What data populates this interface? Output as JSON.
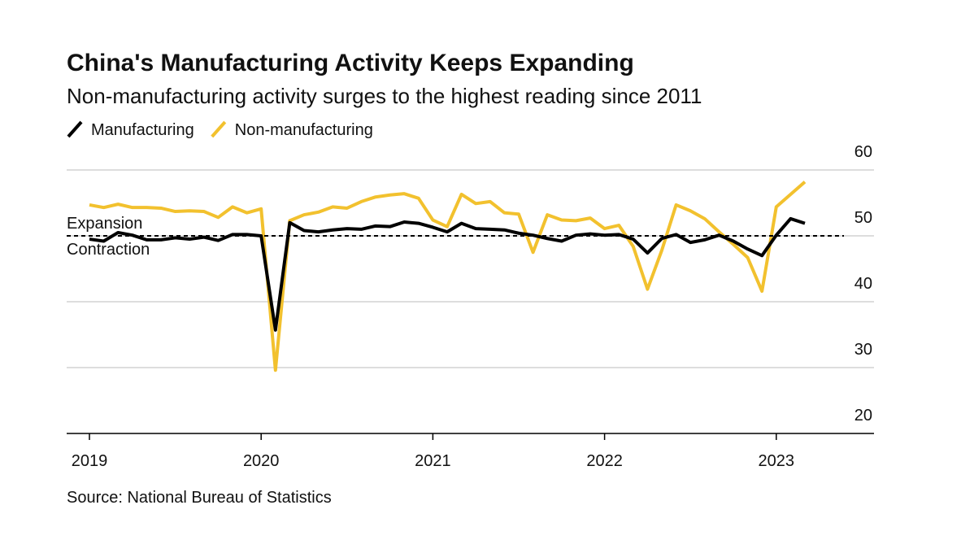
{
  "chart_data": {
    "type": "line",
    "title": "China's Manufacturing Activity Keeps Expanding",
    "subtitle": "Non-manufacturing activity surges to the highest reading since 2011",
    "source": "Source: National Bureau of Statistics",
    "categories": [
      "2019",
      null,
      null,
      null,
      null,
      null,
      null,
      null,
      null,
      null,
      null,
      null,
      "2020",
      null,
      null,
      null,
      null,
      null,
      null,
      null,
      null,
      null,
      null,
      null,
      "2021",
      null,
      null,
      null,
      null,
      null,
      null,
      null,
      null,
      null,
      null,
      null,
      "2022",
      null,
      null,
      null,
      null,
      null,
      null,
      null,
      null,
      null,
      null,
      null,
      "2023",
      null,
      null
    ],
    "series": [
      {
        "name": "Manufacturing",
        "color": "#000000",
        "values": [
          49.5,
          49.2,
          50.5,
          50.1,
          49.4,
          49.4,
          49.7,
          49.5,
          49.8,
          49.3,
          50.2,
          50.2,
          50.0,
          35.7,
          52.0,
          50.8,
          50.6,
          50.9,
          51.1,
          51.0,
          51.5,
          51.4,
          52.1,
          51.9,
          51.3,
          50.6,
          51.9,
          51.1,
          51.0,
          50.9,
          50.4,
          50.1,
          49.6,
          49.2,
          50.1,
          50.3,
          50.1,
          50.2,
          49.5,
          47.4,
          49.6,
          50.2,
          49.0,
          49.4,
          50.1,
          49.2,
          48.0,
          47.0,
          50.1,
          52.6,
          51.9
        ]
      },
      {
        "name": "Non-manufacturing",
        "color": "#f2c12e",
        "values": [
          54.7,
          54.3,
          54.8,
          54.3,
          54.3,
          54.2,
          53.7,
          53.8,
          53.7,
          52.8,
          54.4,
          53.5,
          54.1,
          29.6,
          52.3,
          53.2,
          53.6,
          54.4,
          54.2,
          55.2,
          55.9,
          56.2,
          56.4,
          55.7,
          52.4,
          51.4,
          56.3,
          54.9,
          55.2,
          53.5,
          53.3,
          47.5,
          53.2,
          52.4,
          52.3,
          52.7,
          51.1,
          51.6,
          48.4,
          41.9,
          47.8,
          54.7,
          53.8,
          52.6,
          50.6,
          48.7,
          46.7,
          41.6,
          54.4,
          56.3,
          58.2
        ]
      }
    ],
    "reference_line": {
      "value": 50,
      "labels": [
        "Expansion",
        "Contraction"
      ]
    },
    "ylim": [
      20,
      60
    ],
    "yticks": [
      20,
      30,
      40,
      50,
      60
    ],
    "grid": true,
    "legend": "top-left"
  }
}
